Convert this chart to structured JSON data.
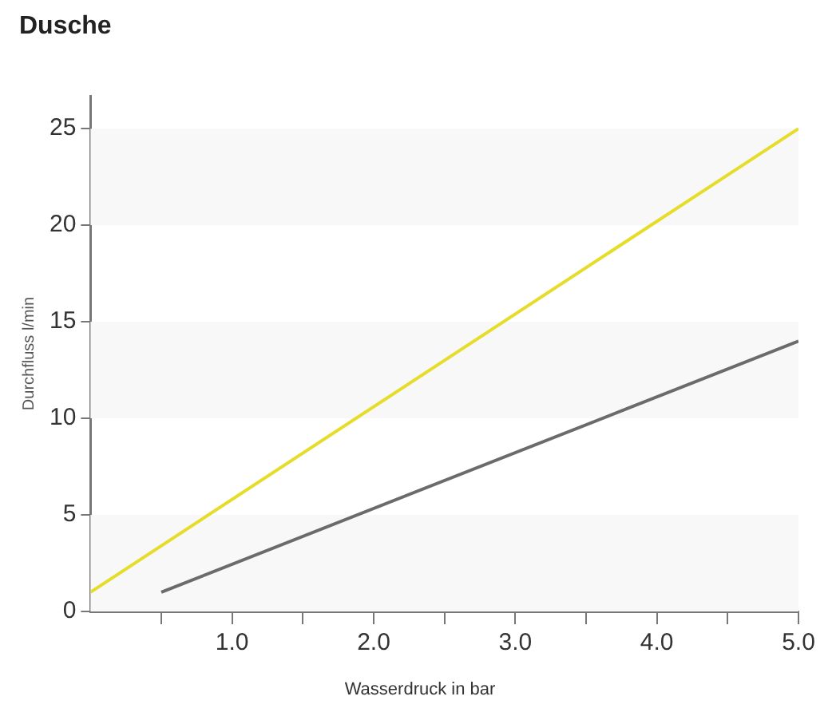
{
  "chart_data": {
    "type": "line",
    "title": "Dusche",
    "xlabel": "Wasserdruck in bar",
    "ylabel": "Durchfluss l/min",
    "xlim": [
      0,
      5
    ],
    "ylim": [
      0,
      26.7
    ],
    "xticks": [
      {
        "value": 0.5,
        "label": null
      },
      {
        "value": 1,
        "label": "1.0"
      },
      {
        "value": 1.5,
        "label": null
      },
      {
        "value": 2,
        "label": "2.0"
      },
      {
        "value": 2.5,
        "label": null
      },
      {
        "value": 3,
        "label": "3.0"
      },
      {
        "value": 3.5,
        "label": null
      },
      {
        "value": 4,
        "label": "4.0"
      },
      {
        "value": 4.5,
        "label": null
      },
      {
        "value": 5,
        "label": "5.0"
      }
    ],
    "yticks": [
      0,
      5,
      10,
      15,
      20,
      25
    ],
    "series": [
      {
        "color": "#e6dc2a",
        "x": [
          0,
          5
        ],
        "values": [
          1,
          25
        ]
      },
      {
        "color": "#6b6b6b",
        "x": [
          0.5,
          5
        ],
        "values": [
          1,
          14
        ]
      }
    ],
    "bands": [
      {
        "axis": "y",
        "from": 0,
        "to": 5,
        "color": "#f8f8f8"
      },
      {
        "axis": "y",
        "from": 10,
        "to": 15,
        "color": "#f8f8f8"
      },
      {
        "axis": "y",
        "from": 20,
        "to": 25,
        "color": "#f8f8f8"
      }
    ],
    "grid": false,
    "legend": false,
    "marker": "none",
    "line_style": "solid"
  }
}
